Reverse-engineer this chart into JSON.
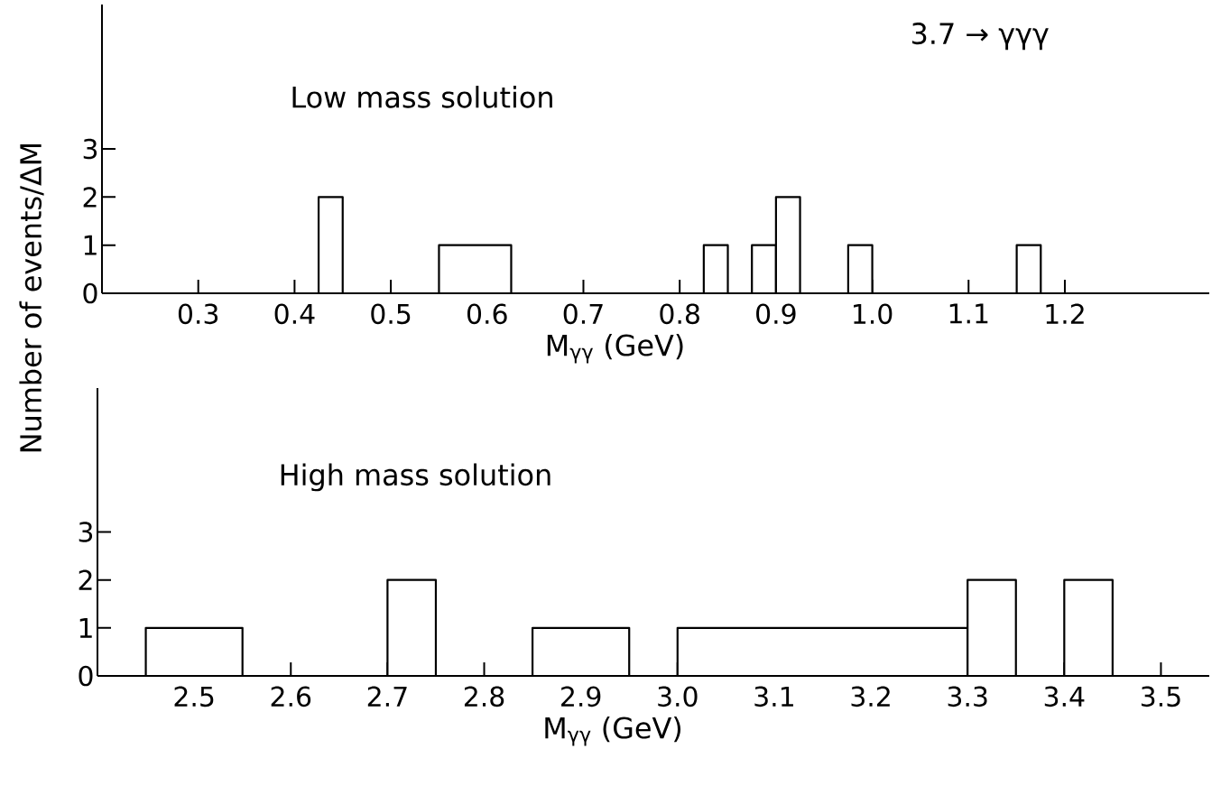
{
  "chart_data": [
    {
      "type": "histogram",
      "title": null,
      "xlabel": "M$_{γγ}$ (GeV)",
      "ylabel": "Number of events/ΔM",
      "color": "#000000",
      "annotations": [
        "Low mass solution",
        "3.7 → γγγ"
      ],
      "bins": [
        0.425,
        0.45,
        0.55,
        0.625,
        0.825,
        0.85,
        0.875,
        0.9,
        0.925,
        0.975,
        1.0,
        1.15,
        1.175
      ],
      "values": [
        2,
        0,
        1,
        0,
        1,
        0,
        1,
        2,
        0,
        1,
        0,
        1
      ],
      "xlim": [
        0.2,
        1.35
      ],
      "ylim": [
        0,
        6
      ],
      "xticks": [
        0.3,
        0.4,
        0.5,
        0.6,
        0.7,
        0.8,
        0.9,
        {
          "value": 1.0,
          "label": "1.0"
        },
        1.1,
        1.2
      ],
      "yticks": [
        0,
        1,
        2,
        3
      ]
    },
    {
      "type": "histogram",
      "xlabel": "M$_{γγ}$ (GeV)",
      "color": "#000000",
      "annotations": [
        "High mass solution"
      ],
      "bins": [
        2.45,
        2.55,
        2.7,
        2.75,
        2.85,
        2.95,
        3.0,
        3.3,
        3.35,
        3.4,
        3.45
      ],
      "values": [
        1,
        0,
        2,
        0,
        1,
        0,
        1,
        2,
        0,
        2
      ],
      "xlim": [
        2.4,
        3.55
      ],
      "ylim": [
        0,
        6
      ],
      "xticks": [
        2.5,
        2.6,
        2.7,
        2.8,
        2.9,
        {
          "value": 3.0,
          "label": "3.0"
        },
        3.1,
        3.2,
        3.3,
        3.4,
        3.5
      ],
      "yticks": [
        0,
        1,
        2,
        3
      ]
    }
  ]
}
